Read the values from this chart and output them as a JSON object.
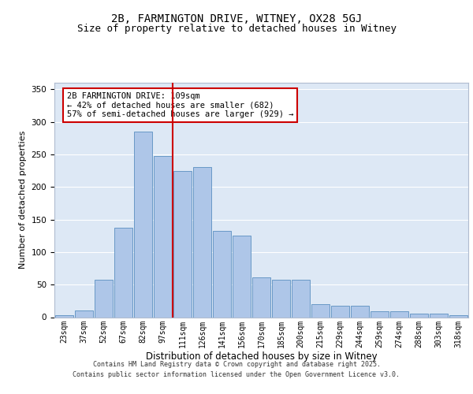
{
  "title": "2B, FARMINGTON DRIVE, WITNEY, OX28 5GJ",
  "subtitle": "Size of property relative to detached houses in Witney",
  "xlabel": "Distribution of detached houses by size in Witney",
  "ylabel": "Number of detached properties",
  "bar_labels": [
    "23sqm",
    "37sqm",
    "52sqm",
    "67sqm",
    "82sqm",
    "97sqm",
    "111sqm",
    "126sqm",
    "141sqm",
    "156sqm",
    "170sqm",
    "185sqm",
    "200sqm",
    "215sqm",
    "229sqm",
    "244sqm",
    "259sqm",
    "274sqm",
    "288sqm",
    "303sqm",
    "318sqm"
  ],
  "bar_values": [
    3,
    10,
    58,
    137,
    285,
    248,
    225,
    230,
    133,
    125,
    61,
    57,
    57,
    20,
    18,
    18,
    9,
    9,
    5,
    6,
    3
  ],
  "bar_color": "#aec6e8",
  "bar_edge_color": "#5a8fc0",
  "vline_index": 6,
  "vline_color": "#cc0000",
  "annotation_line1": "2B FARMINGTON DRIVE: 109sqm",
  "annotation_line2": "← 42% of detached houses are smaller (682)",
  "annotation_line3": "57% of semi-detached houses are larger (929) →",
  "annotation_box_color": "#cc0000",
  "ylim": [
    0,
    360
  ],
  "yticks": [
    0,
    50,
    100,
    150,
    200,
    250,
    300,
    350
  ],
  "background_color": "#dde8f5",
  "grid_color": "#ffffff",
  "footer_line1": "Contains HM Land Registry data © Crown copyright and database right 2025.",
  "footer_line2": "Contains public sector information licensed under the Open Government Licence v3.0.",
  "title_fontsize": 10,
  "subtitle_fontsize": 9,
  "xlabel_fontsize": 8.5,
  "ylabel_fontsize": 8,
  "tick_fontsize": 7,
  "annotation_fontsize": 7.5,
  "footer_fontsize": 6
}
